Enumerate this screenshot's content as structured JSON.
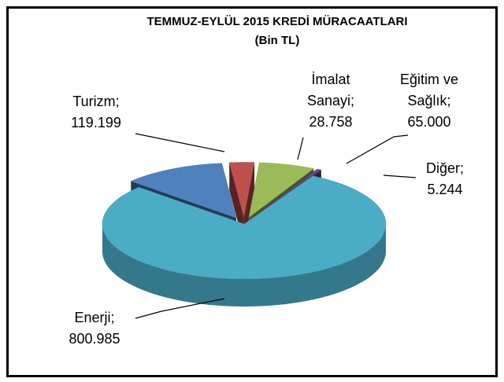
{
  "chart_data": {
    "type": "pie3d",
    "title": "TEMMUZ-EYLÜL 2015 KREDİ MÜRACAATLARI",
    "subtitle": "(Bin TL)",
    "categories": [
      "Turizm",
      "İmalat Sanayi",
      "Eğitim ve Sağlık",
      "Diğer",
      "Enerji"
    ],
    "values": [
      119199,
      28758,
      65000,
      5244,
      800985
    ],
    "value_labels": [
      "119.199",
      "28.758",
      "65.000",
      "5.244",
      "800.985"
    ],
    "label_separator": ";",
    "colors": [
      "#4f81bd",
      "#c0504d",
      "#9bbb59",
      "#604a7b",
      "#4bacc6"
    ]
  }
}
